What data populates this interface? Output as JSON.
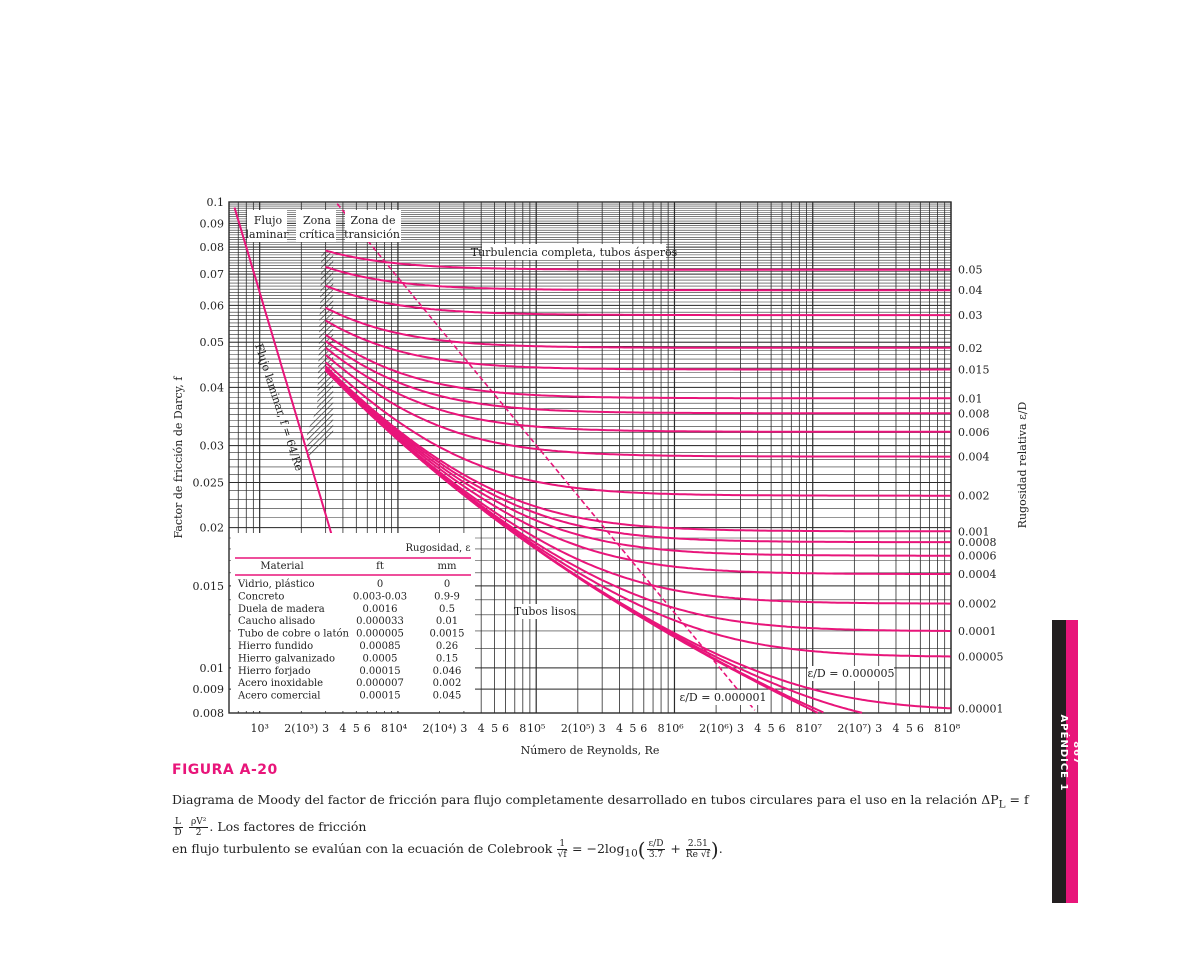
{
  "chart_data": {
    "type": "line",
    "title": "Diagrama de Moody",
    "xlabel": "Número de Reynolds, Re",
    "ylabel": "Factor de fricción de Darcy, f",
    "ylabel_right": "Rugosidad relativa ε/D",
    "x_scale": "log",
    "y_scale": "log",
    "xlim": [
      600,
      100000000
    ],
    "ylim": [
      0.008,
      0.1
    ],
    "grid": true,
    "y_ticks": [
      {
        "value": 0.1,
        "label": "0.1"
      },
      {
        "value": 0.09,
        "label": "0.09"
      },
      {
        "value": 0.08,
        "label": "0.08"
      },
      {
        "value": 0.07,
        "label": "0.07"
      },
      {
        "value": 0.06,
        "label": "0.06"
      },
      {
        "value": 0.05,
        "label": "0.05"
      },
      {
        "value": 0.04,
        "label": "0.04"
      },
      {
        "value": 0.03,
        "label": "0.03"
      },
      {
        "value": 0.025,
        "label": "0.025"
      },
      {
        "value": 0.02,
        "label": "0.02"
      },
      {
        "value": 0.015,
        "label": "0.015"
      },
      {
        "value": 0.01,
        "label": "0.01"
      },
      {
        "value": 0.009,
        "label": "0.009"
      },
      {
        "value": 0.008,
        "label": "0.008"
      }
    ],
    "x_ticks": [
      {
        "value": 1000,
        "label": "10³"
      },
      {
        "value": 2000,
        "label": "2(10³)"
      },
      {
        "value": 3000,
        "label": "3"
      },
      {
        "value": 4000,
        "label": "4"
      },
      {
        "value": 5000,
        "label": "5"
      },
      {
        "value": 6000,
        "label": "6"
      },
      {
        "value": 8000,
        "label": "8"
      },
      {
        "value": 10000,
        "label": "10⁴"
      },
      {
        "value": 20000,
        "label": "2(10⁴)"
      },
      {
        "value": 30000,
        "label": "3"
      },
      {
        "value": 40000,
        "label": "4"
      },
      {
        "value": 50000,
        "label": "5"
      },
      {
        "value": 60000,
        "label": "6"
      },
      {
        "value": 80000,
        "label": "8"
      },
      {
        "value": 100000,
        "label": "10⁵"
      },
      {
        "value": 200000,
        "label": "2(10⁵)"
      },
      {
        "value": 300000,
        "label": "3"
      },
      {
        "value": 400000,
        "label": "4"
      },
      {
        "value": 500000,
        "label": "5"
      },
      {
        "value": 600000,
        "label": "6"
      },
      {
        "value": 800000,
        "label": "8"
      },
      {
        "value": 1000000,
        "label": "10⁶"
      },
      {
        "value": 2000000,
        "label": "2(10⁶)"
      },
      {
        "value": 3000000,
        "label": "3"
      },
      {
        "value": 4000000,
        "label": "4"
      },
      {
        "value": 5000000,
        "label": "5"
      },
      {
        "value": 6000000,
        "label": "6"
      },
      {
        "value": 8000000,
        "label": "8"
      },
      {
        "value": 10000000,
        "label": "10⁷"
      },
      {
        "value": 20000000,
        "label": "2(10⁷)"
      },
      {
        "value": 30000000,
        "label": "3"
      },
      {
        "value": 40000000,
        "label": "4"
      },
      {
        "value": 50000000,
        "label": "5"
      },
      {
        "value": 60000000,
        "label": "6"
      },
      {
        "value": 80000000,
        "label": "8"
      },
      {
        "value": 100000000,
        "label": "10⁸"
      }
    ],
    "roughness_series": [
      {
        "name": "0.05",
        "eps_D": 0.05
      },
      {
        "name": "0.04",
        "eps_D": 0.04
      },
      {
        "name": "0.03",
        "eps_D": 0.03
      },
      {
        "name": "0.02",
        "eps_D": 0.02
      },
      {
        "name": "0.015",
        "eps_D": 0.015
      },
      {
        "name": "0.01",
        "eps_D": 0.01
      },
      {
        "name": "0.008",
        "eps_D": 0.008
      },
      {
        "name": "0.006",
        "eps_D": 0.006
      },
      {
        "name": "0.004",
        "eps_D": 0.004
      },
      {
        "name": "0.002",
        "eps_D": 0.002
      },
      {
        "name": "0.001",
        "eps_D": 0.001
      },
      {
        "name": "0.0008",
        "eps_D": 0.0008
      },
      {
        "name": "0.0006",
        "eps_D": 0.0006
      },
      {
        "name": "0.0004",
        "eps_D": 0.0004
      },
      {
        "name": "0.0002",
        "eps_D": 0.0002
      },
      {
        "name": "0.0001",
        "eps_D": 0.0001
      },
      {
        "name": "0.00005",
        "eps_D": 5e-05
      },
      {
        "name": "0.00001",
        "eps_D": 1e-05
      },
      {
        "name": "0.000005",
        "eps_D": 5e-06
      },
      {
        "name": "0.000001",
        "eps_D": 1e-06
      },
      {
        "name": "0 (Tubos lisos)",
        "eps_D": 0
      }
    ],
    "laminar": {
      "formula": "f = 64/Re",
      "re_range": [
        600,
        3000
      ]
    },
    "annotations": {
      "zone_laminar": [
        "Flujo",
        "laminar"
      ],
      "zone_critical": [
        "Zona",
        "crítica"
      ],
      "zone_transition": [
        "Zona de",
        "transición"
      ],
      "complete_turbulence": "Turbulencia completa, tubos ásperos",
      "laminar_line": "Flujo laminar, f = 64/Re",
      "smooth_pipes": "Tubos lisos",
      "eps_000005": "ε/D = 0.000005",
      "eps_000001": "ε/D = 0.000001"
    },
    "roughness_table": {
      "group_header": "Rugosidad, ε",
      "columns": [
        "Material",
        "ft",
        "mm"
      ],
      "rows": [
        [
          "Vidrio, plástico",
          "0",
          "0"
        ],
        [
          "Concreto",
          "0.003-0.03",
          "0.9-9"
        ],
        [
          "Duela de madera",
          "0.0016",
          "0.5"
        ],
        [
          "Caucho alisado",
          "0.000033",
          "0.01"
        ],
        [
          "Tubo de cobre o latón",
          "0.000005",
          "0.0015"
        ],
        [
          "Hierro fundido",
          "0.00085",
          "0.26"
        ],
        [
          "Hierro galvanizado",
          "0.0005",
          "0.15"
        ],
        [
          "Hierro forjado",
          "0.00015",
          "0.046"
        ],
        [
          "Acero inoxidable",
          "0.000007",
          "0.002"
        ],
        [
          "Acero comercial",
          "0.00015",
          "0.045"
        ]
      ]
    }
  },
  "figure": {
    "label": "FIGURA A-20",
    "caption_line1_a": "Diagrama de Moody del factor de fricción para flujo completamente desarrollado en tubos circulares para el uso en la relación ΔP",
    "caption_line1_sub": "L",
    "caption_line1_b": " = f",
    "caption_frac1_num": "L",
    "caption_frac1_den": "D",
    "caption_frac2_num": "ρV²",
    "caption_frac2_den": "2",
    "caption_line1_c": ". Los factores de fricción",
    "caption_line2_a": "en flujo turbulento se evalúan con la ecuación de Colebrook ",
    "caption_frac3_num": "1",
    "caption_frac3_den": "√f",
    "caption_line2_b": " = −2log",
    "caption_line2_sub": "10",
    "caption_frac4_num": "ε/D",
    "caption_frac4_den": "3.7",
    "caption_plus": " + ",
    "caption_frac5_num": "2.51",
    "caption_frac5_den": "Re √f",
    "caption_end": "."
  },
  "sidebar": {
    "page_number": "867",
    "section": "APÉNDICE 1"
  },
  "colors": {
    "accent": "#e8157a",
    "grid": "#2b2b2b",
    "text": "#222222",
    "sidebar_dark": "#231f20"
  }
}
